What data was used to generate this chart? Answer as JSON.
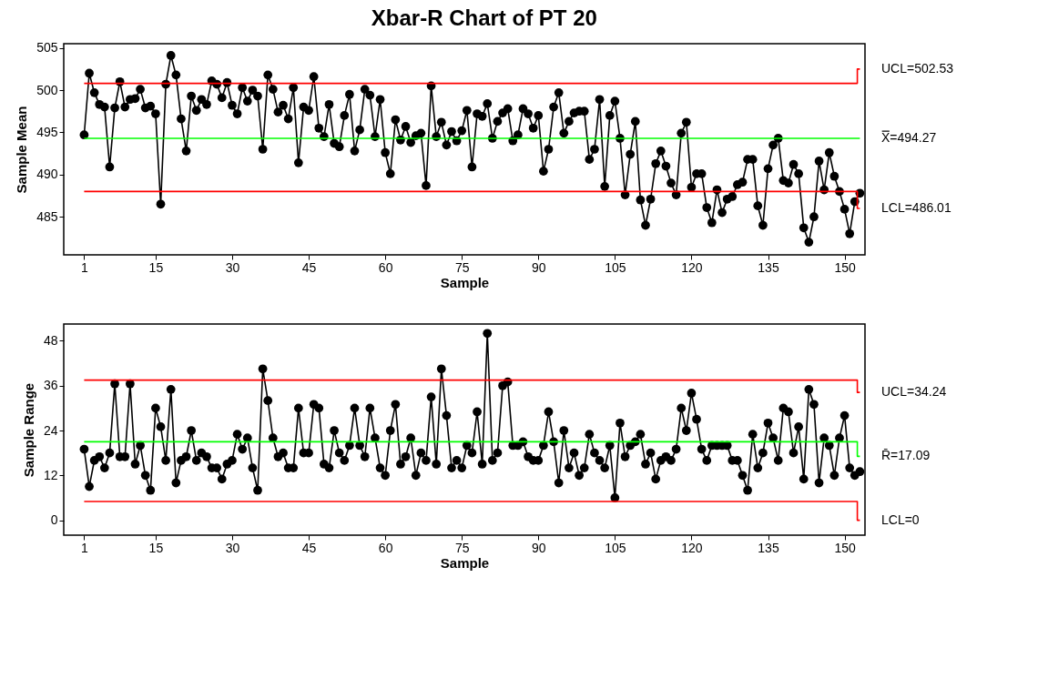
{
  "chart_data": [
    {
      "type": "line",
      "title": "Xbar-R Chart of PT 20",
      "xlabel": "Sample",
      "ylabel": "Sample Mean",
      "marker": "circle",
      "xlim": [
        -3,
        154
      ],
      "xticks": [
        1,
        15,
        30,
        45,
        60,
        75,
        90,
        105,
        120,
        135,
        150
      ],
      "ylim": [
        480.5,
        505.5
      ],
      "yticks": [
        485,
        490,
        495,
        500,
        505
      ],
      "x": [
        1,
        2,
        3,
        4,
        5,
        6,
        7,
        8,
        9,
        10,
        11,
        12,
        13,
        14,
        15,
        16,
        17,
        18,
        19,
        20,
        21,
        22,
        23,
        24,
        25,
        26,
        27,
        28,
        29,
        30,
        31,
        32,
        33,
        34,
        35,
        36,
        37,
        38,
        39,
        40,
        41,
        42,
        43,
        44,
        45,
        46,
        47,
        48,
        49,
        50,
        51,
        52,
        53,
        54,
        55,
        56,
        57,
        58,
        59,
        60,
        61,
        62,
        63,
        64,
        65,
        66,
        67,
        68,
        69,
        70,
        71,
        72,
        73,
        74,
        75,
        76,
        77,
        78,
        79,
        80,
        81,
        82,
        83,
        84,
        85,
        86,
        87,
        88,
        89,
        90,
        91,
        92,
        93,
        94,
        95,
        96,
        97,
        98,
        99,
        100,
        101,
        102,
        103,
        104,
        105,
        106,
        107,
        108,
        109,
        110,
        111,
        112,
        113,
        114,
        115,
        116,
        117,
        118,
        119,
        120,
        121,
        122,
        123,
        124,
        125,
        126,
        127,
        128,
        129,
        130,
        131,
        132,
        133,
        134,
        135,
        136,
        137,
        138,
        139,
        140,
        141,
        142,
        143,
        144,
        145,
        146,
        147,
        148,
        149,
        150,
        151,
        152,
        153
      ],
      "series": [
        {
          "color": "#000000",
          "values": [
            494.7,
            502.0,
            499.7,
            498.3,
            498.0,
            490.9,
            497.9,
            501.0,
            498.0,
            498.9,
            499.0,
            500.1,
            497.9,
            498.1,
            497.2,
            486.5,
            500.7,
            504.1,
            501.8,
            496.6,
            492.8,
            499.3,
            497.6,
            498.9,
            498.3,
            501.1,
            500.7,
            499.1,
            500.9,
            498.2,
            497.2,
            500.3,
            498.7,
            500.0,
            499.3,
            493.0,
            501.8,
            500.1,
            497.4,
            498.2,
            496.6,
            500.3,
            491.4,
            498.0,
            497.6,
            501.6,
            495.5,
            494.5,
            498.3,
            493.7,
            493.3,
            497.0,
            499.5,
            492.8,
            495.3,
            500.1,
            499.4,
            494.5,
            498.9,
            492.6,
            490.1,
            496.5,
            494.1,
            495.7,
            493.8,
            494.6,
            494.9,
            488.7,
            500.5,
            494.5,
            496.2,
            493.5,
            495.1,
            494.0,
            495.2,
            497.6,
            490.9,
            497.2,
            496.9,
            498.4,
            494.3,
            496.3,
            497.3,
            497.8,
            494.0,
            494.7,
            497.8,
            497.2,
            495.5,
            497.0,
            490.4,
            493.0,
            498.0,
            499.7,
            494.9,
            496.3,
            497.3,
            497.5,
            497.5,
            491.8,
            493.0,
            498.9,
            488.6,
            497.0,
            498.7,
            494.3,
            487.6,
            492.4,
            496.3,
            487.0,
            484.0,
            487.1,
            491.3,
            492.8,
            491.0,
            489.0,
            487.6,
            494.9,
            496.2,
            488.5,
            490.1,
            490.1,
            486.1,
            484.3,
            488.2,
            485.5,
            487.1,
            487.4,
            488.8,
            489.1,
            491.8,
            491.8,
            486.3,
            484.0,
            490.7,
            493.5,
            494.3,
            489.3,
            489.0,
            491.2,
            490.1,
            483.7,
            482.0,
            485.0,
            491.6,
            488.2,
            492.6,
            489.8,
            488.0,
            485.9,
            483.0,
            486.8,
            487.8
          ]
        },
        {
          "color": "#ff0000",
          "marker": "none",
          "x": [
            1,
            152.5,
            152.5,
            153
          ],
          "values": [
            500.8,
            500.8,
            502.5,
            502.5
          ]
        },
        {
          "color": "#00ff00",
          "marker": "none",
          "x": [
            1,
            153
          ],
          "values": [
            494.3,
            494.3
          ]
        },
        {
          "color": "#ff0000",
          "marker": "none",
          "x": [
            1,
            152.5,
            152.5,
            153
          ],
          "values": [
            488.0,
            488.0,
            486.0,
            486.0
          ]
        }
      ],
      "annotations": [
        "UCL=502.53",
        "X̿=494.27",
        "LCL=486.01"
      ]
    },
    {
      "type": "line",
      "xlabel": "Sample",
      "ylabel": "Sample Range",
      "marker": "circle",
      "xlim": [
        -3,
        154
      ],
      "xticks": [
        1,
        15,
        30,
        45,
        60,
        75,
        90,
        105,
        120,
        135,
        150
      ],
      "ylim": [
        -4,
        52.5
      ],
      "yticks": [
        0,
        12,
        24,
        36,
        48
      ],
      "x": [
        1,
        2,
        3,
        4,
        5,
        6,
        7,
        8,
        9,
        10,
        11,
        12,
        13,
        14,
        15,
        16,
        17,
        18,
        19,
        20,
        21,
        22,
        23,
        24,
        25,
        26,
        27,
        28,
        29,
        30,
        31,
        32,
        33,
        34,
        35,
        36,
        37,
        38,
        39,
        40,
        41,
        42,
        43,
        44,
        45,
        46,
        47,
        48,
        49,
        50,
        51,
        52,
        53,
        54,
        55,
        56,
        57,
        58,
        59,
        60,
        61,
        62,
        63,
        64,
        65,
        66,
        67,
        68,
        69,
        70,
        71,
        72,
        73,
        74,
        75,
        76,
        77,
        78,
        79,
        80,
        81,
        82,
        83,
        84,
        85,
        86,
        87,
        88,
        89,
        90,
        91,
        92,
        93,
        94,
        95,
        96,
        97,
        98,
        99,
        100,
        101,
        102,
        103,
        104,
        105,
        106,
        107,
        108,
        109,
        110,
        111,
        112,
        113,
        114,
        115,
        116,
        117,
        118,
        119,
        120,
        121,
        122,
        123,
        124,
        125,
        126,
        127,
        128,
        129,
        130,
        131,
        132,
        133,
        134,
        135,
        136,
        137,
        138,
        139,
        140,
        141,
        142,
        143,
        144,
        145,
        146,
        147,
        148,
        149,
        150,
        151,
        152,
        153
      ],
      "series": [
        {
          "color": "#000000",
          "values": [
            19,
            9,
            16,
            17,
            14,
            18,
            36.5,
            17,
            17,
            36.5,
            15,
            20,
            12,
            8,
            30,
            25,
            16,
            35,
            10,
            16,
            17,
            24,
            16,
            18,
            17,
            14,
            14,
            11,
            15,
            16,
            23,
            19,
            22,
            14,
            8,
            40.5,
            32,
            22,
            17,
            18,
            14,
            14,
            30,
            18,
            18,
            31,
            30,
            15,
            14,
            24,
            18,
            16,
            20,
            30,
            20,
            17,
            30,
            22,
            14,
            12,
            24,
            31,
            15,
            17,
            22,
            12,
            18,
            16,
            33,
            15,
            40.5,
            28,
            14,
            16,
            14,
            20,
            18,
            29,
            15,
            50,
            16,
            18,
            36,
            37,
            20,
            20,
            21,
            17,
            16,
            16,
            20,
            29,
            21,
            10,
            24,
            14,
            18,
            12,
            14,
            23,
            18,
            16,
            14,
            20,
            6,
            26,
            17,
            20,
            21,
            23,
            15,
            18,
            11,
            16,
            17,
            16,
            19,
            30,
            24,
            34,
            27,
            19,
            16,
            20,
            20,
            20,
            20,
            16,
            16,
            12,
            8,
            23,
            14,
            18,
            26,
            22,
            16,
            30,
            29,
            18,
            25,
            11,
            35,
            31,
            10,
            22,
            20,
            12,
            22,
            28,
            14,
            12,
            13
          ]
        },
        {
          "color": "#ff0000",
          "marker": "none",
          "x": [
            1,
            152.5,
            152.5,
            153
          ],
          "values": [
            37.5,
            37.5,
            34.2,
            34.2
          ]
        },
        {
          "color": "#00ff00",
          "marker": "none",
          "x": [
            1,
            152.5,
            152.5,
            153
          ],
          "values": [
            21.0,
            21.0,
            17.1,
            17.1
          ]
        },
        {
          "color": "#ff0000",
          "marker": "none",
          "x": [
            1,
            152.5,
            152.5,
            153
          ],
          "values": [
            5.0,
            5.0,
            0,
            0
          ]
        }
      ],
      "annotations": [
        "UCL=34.24",
        "R̄=17.09",
        "LCL=0"
      ]
    }
  ]
}
